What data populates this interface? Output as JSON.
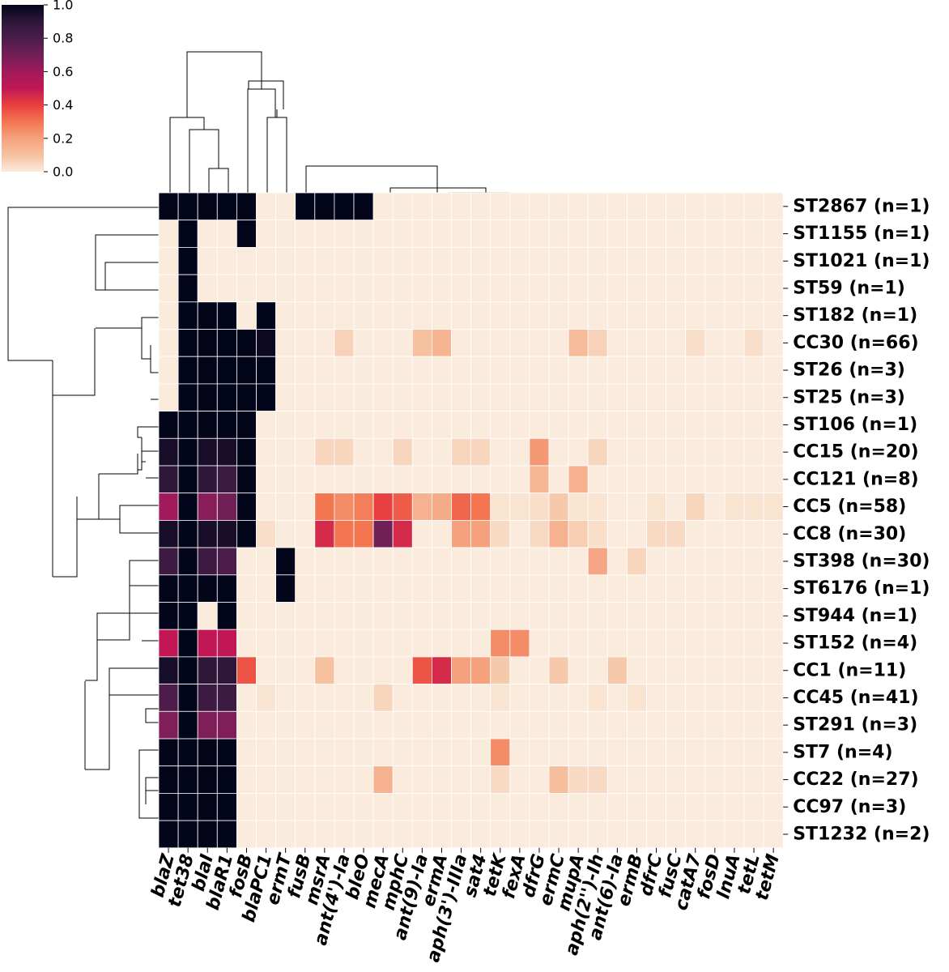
{
  "chart_data": {
    "type": "heatmap",
    "title": "",
    "xlabel": "",
    "ylabel": "",
    "colormap": "rocket_r",
    "vmin": 0.0,
    "vmax": 1.0,
    "colorbar": {
      "ticks": [
        "0.0",
        "0.2",
        "0.4",
        "0.6",
        "0.8",
        "1.0"
      ],
      "placement": "top-left"
    },
    "rows": [
      "ST2867 (n=1)",
      "ST1155 (n=1)",
      "ST1021 (n=1)",
      "ST59 (n=1)",
      "ST182 (n=1)",
      "CC30 (n=66)",
      "ST26 (n=3)",
      "ST25 (n=3)",
      "ST106 (n=1)",
      "CC15 (n=20)",
      "CC121 (n=8)",
      "CC5 (n=58)",
      "CC8 (n=30)",
      "ST398 (n=30)",
      "ST6176 (n=1)",
      "ST944 (n=1)",
      "ST152 (n=4)",
      "CC1 (n=11)",
      "CC45 (n=41)",
      "ST291 (n=3)",
      "ST7 (n=4)",
      "CC22 (n=27)",
      "CC97 (n=3)",
      "ST1232 (n=2)"
    ],
    "columns": [
      "blaZ",
      "tet38",
      "blaI",
      "blaR1",
      "fosB",
      "blaPC1",
      "ermT",
      "fusB",
      "msrA",
      "ant(4')-Ia",
      "bleO",
      "mecA",
      "mphC",
      "ant(9)-Ia",
      "ermA",
      "aph(3')-IIIa",
      "sat4",
      "tetK",
      "fexA",
      "dfrG",
      "ermC",
      "mupA",
      "aph(2'')-Ih",
      "ant(6)-Ia",
      "ermB",
      "dfrC",
      "fusC",
      "catA7",
      "fosD",
      "lnuA",
      "tetL",
      "tetM"
    ],
    "values": [
      [
        1,
        1,
        1,
        1,
        1,
        0,
        0,
        1,
        1,
        1,
        1,
        0,
        0,
        0,
        0,
        0,
        0,
        0,
        0,
        0,
        0,
        0,
        0,
        0,
        0,
        0,
        0,
        0,
        0,
        0,
        0,
        0
      ],
      [
        0,
        1,
        0,
        0,
        1,
        0,
        0,
        0,
        0,
        0,
        0,
        0,
        0,
        0,
        0,
        0,
        0,
        0,
        0,
        0,
        0,
        0,
        0,
        0,
        0,
        0,
        0,
        0,
        0,
        0,
        0,
        0
      ],
      [
        0,
        1,
        0,
        0,
        0,
        0,
        0,
        0,
        0,
        0,
        0,
        0,
        0,
        0,
        0,
        0,
        0,
        0,
        0,
        0,
        0,
        0,
        0,
        0,
        0,
        0,
        0,
        0,
        0,
        0,
        0,
        0
      ],
      [
        0,
        1,
        0,
        0,
        0,
        0,
        0,
        0,
        0,
        0,
        0,
        0,
        0,
        0,
        0,
        0,
        0,
        0,
        0,
        0,
        0,
        0,
        0,
        0,
        0,
        0,
        0,
        0,
        0,
        0,
        0,
        0
      ],
      [
        0,
        1,
        1,
        1,
        0,
        1,
        0,
        0,
        0,
        0,
        0,
        0,
        0,
        0,
        0,
        0,
        0,
        0,
        0,
        0,
        0,
        0,
        0,
        0,
        0,
        0,
        0,
        0,
        0,
        0,
        0,
        0
      ],
      [
        0,
        1,
        1,
        1,
        1,
        0.98,
        0,
        0,
        0,
        0.06,
        0,
        0,
        0,
        0.1,
        0.14,
        0,
        0,
        0,
        0,
        0,
        0,
        0.12,
        0.06,
        0,
        0,
        0,
        0,
        0.03,
        0,
        0,
        0.03,
        0
      ],
      [
        0,
        1,
        1,
        1,
        1,
        1,
        0,
        0,
        0,
        0,
        0,
        0,
        0,
        0,
        0,
        0,
        0,
        0,
        0,
        0,
        0,
        0,
        0,
        0,
        0,
        0,
        0,
        0,
        0,
        0,
        0,
        0
      ],
      [
        0,
        1,
        1,
        1,
        1,
        1,
        0,
        0,
        0,
        0,
        0,
        0,
        0,
        0,
        0,
        0,
        0,
        0,
        0,
        0,
        0,
        0,
        0,
        0,
        0,
        0,
        0,
        0,
        0,
        0,
        0,
        0
      ],
      [
        1,
        1,
        1,
        1,
        1,
        0,
        0,
        0,
        0,
        0,
        0,
        0,
        0,
        0,
        0,
        0,
        0,
        0,
        0,
        0,
        0,
        0,
        0,
        0,
        0,
        0,
        0,
        0,
        0,
        0,
        0,
        0
      ],
      [
        0.95,
        1,
        0.95,
        0.95,
        1,
        0,
        0,
        0,
        0.05,
        0.05,
        0,
        0,
        0.05,
        0,
        0,
        0.05,
        0.05,
        0,
        0,
        0.22,
        0,
        0,
        0.05,
        0,
        0,
        0,
        0,
        0,
        0,
        0,
        0,
        0
      ],
      [
        0.9,
        1,
        0.9,
        0.85,
        1,
        0,
        0,
        0,
        0,
        0,
        0,
        0,
        0,
        0,
        0,
        0,
        0,
        0,
        0,
        0.13,
        0,
        0.15,
        0,
        0,
        0,
        0,
        0,
        0,
        0,
        0,
        0,
        0
      ],
      [
        0.6,
        1,
        0.65,
        0.7,
        1,
        0,
        0,
        0,
        0.3,
        0.25,
        0.28,
        0.4,
        0.35,
        0.15,
        0.17,
        0.33,
        0.3,
        0.02,
        0.02,
        0.03,
        0.08,
        0.02,
        0.02,
        0,
        0,
        0.02,
        0,
        0.05,
        0,
        0.02,
        0.02,
        0.02
      ],
      [
        0.95,
        1,
        0.95,
        0.95,
        1,
        0.03,
        0,
        0,
        0.45,
        0.3,
        0.3,
        0.7,
        0.45,
        0,
        0,
        0.2,
        0.2,
        0.04,
        0,
        0.04,
        0.15,
        0.07,
        0.03,
        0,
        0,
        0.04,
        0.04,
        0,
        0,
        0,
        0,
        0
      ],
      [
        0.85,
        1,
        0.85,
        0.8,
        0,
        0,
        1,
        0,
        0,
        0,
        0,
        0,
        0,
        0,
        0,
        0,
        0,
        0,
        0,
        0,
        0,
        0,
        0.18,
        0,
        0.05,
        0,
        0,
        0,
        0,
        0,
        0,
        0
      ],
      [
        1,
        1,
        1,
        1,
        0,
        0,
        1,
        0,
        0,
        0,
        0,
        0,
        0,
        0,
        0,
        0,
        0,
        0,
        0,
        0,
        0,
        0,
        0,
        0,
        0,
        0,
        0,
        0,
        0,
        0,
        0,
        0
      ],
      [
        1,
        1,
        0,
        1,
        0,
        0,
        0,
        0,
        0,
        0,
        0,
        0,
        0,
        0,
        0,
        0,
        0,
        0,
        0,
        0,
        0,
        0,
        0,
        0,
        0,
        0,
        0,
        0,
        0,
        0,
        0,
        0
      ],
      [
        0.5,
        1,
        0.5,
        0.5,
        0,
        0,
        0,
        0,
        0,
        0,
        0,
        0,
        0,
        0,
        0,
        0,
        0,
        0.25,
        0.25,
        0,
        0,
        0,
        0,
        0,
        0,
        0,
        0,
        0,
        0,
        0,
        0,
        0
      ],
      [
        0.95,
        1,
        0.9,
        0.9,
        0.36,
        0,
        0,
        0,
        0.1,
        0,
        0,
        0,
        0,
        0.36,
        0.45,
        0.2,
        0.2,
        0.08,
        0,
        0,
        0.08,
        0,
        0,
        0.08,
        0,
        0,
        0,
        0,
        0,
        0,
        0,
        0
      ],
      [
        0.8,
        1,
        0.85,
        0.85,
        0,
        0.02,
        0,
        0,
        0,
        0,
        0,
        0.05,
        0,
        0,
        0,
        0,
        0,
        0.02,
        0,
        0,
        0,
        0,
        0.02,
        0,
        0.02,
        0,
        0,
        0,
        0,
        0,
        0,
        0
      ],
      [
        0.67,
        1,
        0.67,
        0.67,
        0,
        0,
        0,
        0,
        0,
        0,
        0,
        0,
        0,
        0,
        0,
        0,
        0,
        0,
        0,
        0,
        0,
        0,
        0,
        0,
        0,
        0,
        0,
        0,
        0,
        0,
        0,
        0
      ],
      [
        1,
        1,
        1,
        1,
        0,
        0,
        0,
        0,
        0,
        0,
        0,
        0,
        0,
        0,
        0,
        0,
        0,
        0.25,
        0,
        0,
        0,
        0,
        0,
        0,
        0,
        0,
        0,
        0,
        0,
        0,
        0,
        0
      ],
      [
        1,
        1,
        1,
        1,
        0,
        0,
        0,
        0,
        0,
        0,
        0,
        0.15,
        0,
        0,
        0,
        0,
        0,
        0.04,
        0,
        0,
        0.11,
        0.04,
        0.04,
        0,
        0,
        0,
        0,
        0,
        0,
        0,
        0,
        0
      ],
      [
        1,
        1,
        1,
        1,
        0,
        0,
        0,
        0,
        0,
        0,
        0,
        0,
        0,
        0,
        0,
        0,
        0,
        0,
        0,
        0,
        0,
        0,
        0,
        0,
        0,
        0,
        0,
        0,
        0,
        0,
        0,
        0
      ],
      [
        1,
        1,
        1,
        1,
        0,
        0,
        0,
        0,
        0,
        0,
        0,
        0,
        0,
        0,
        0,
        0,
        0,
        0,
        0,
        0,
        0,
        0,
        0,
        0,
        0,
        0,
        0,
        0,
        0,
        0,
        0,
        0
      ]
    ]
  }
}
